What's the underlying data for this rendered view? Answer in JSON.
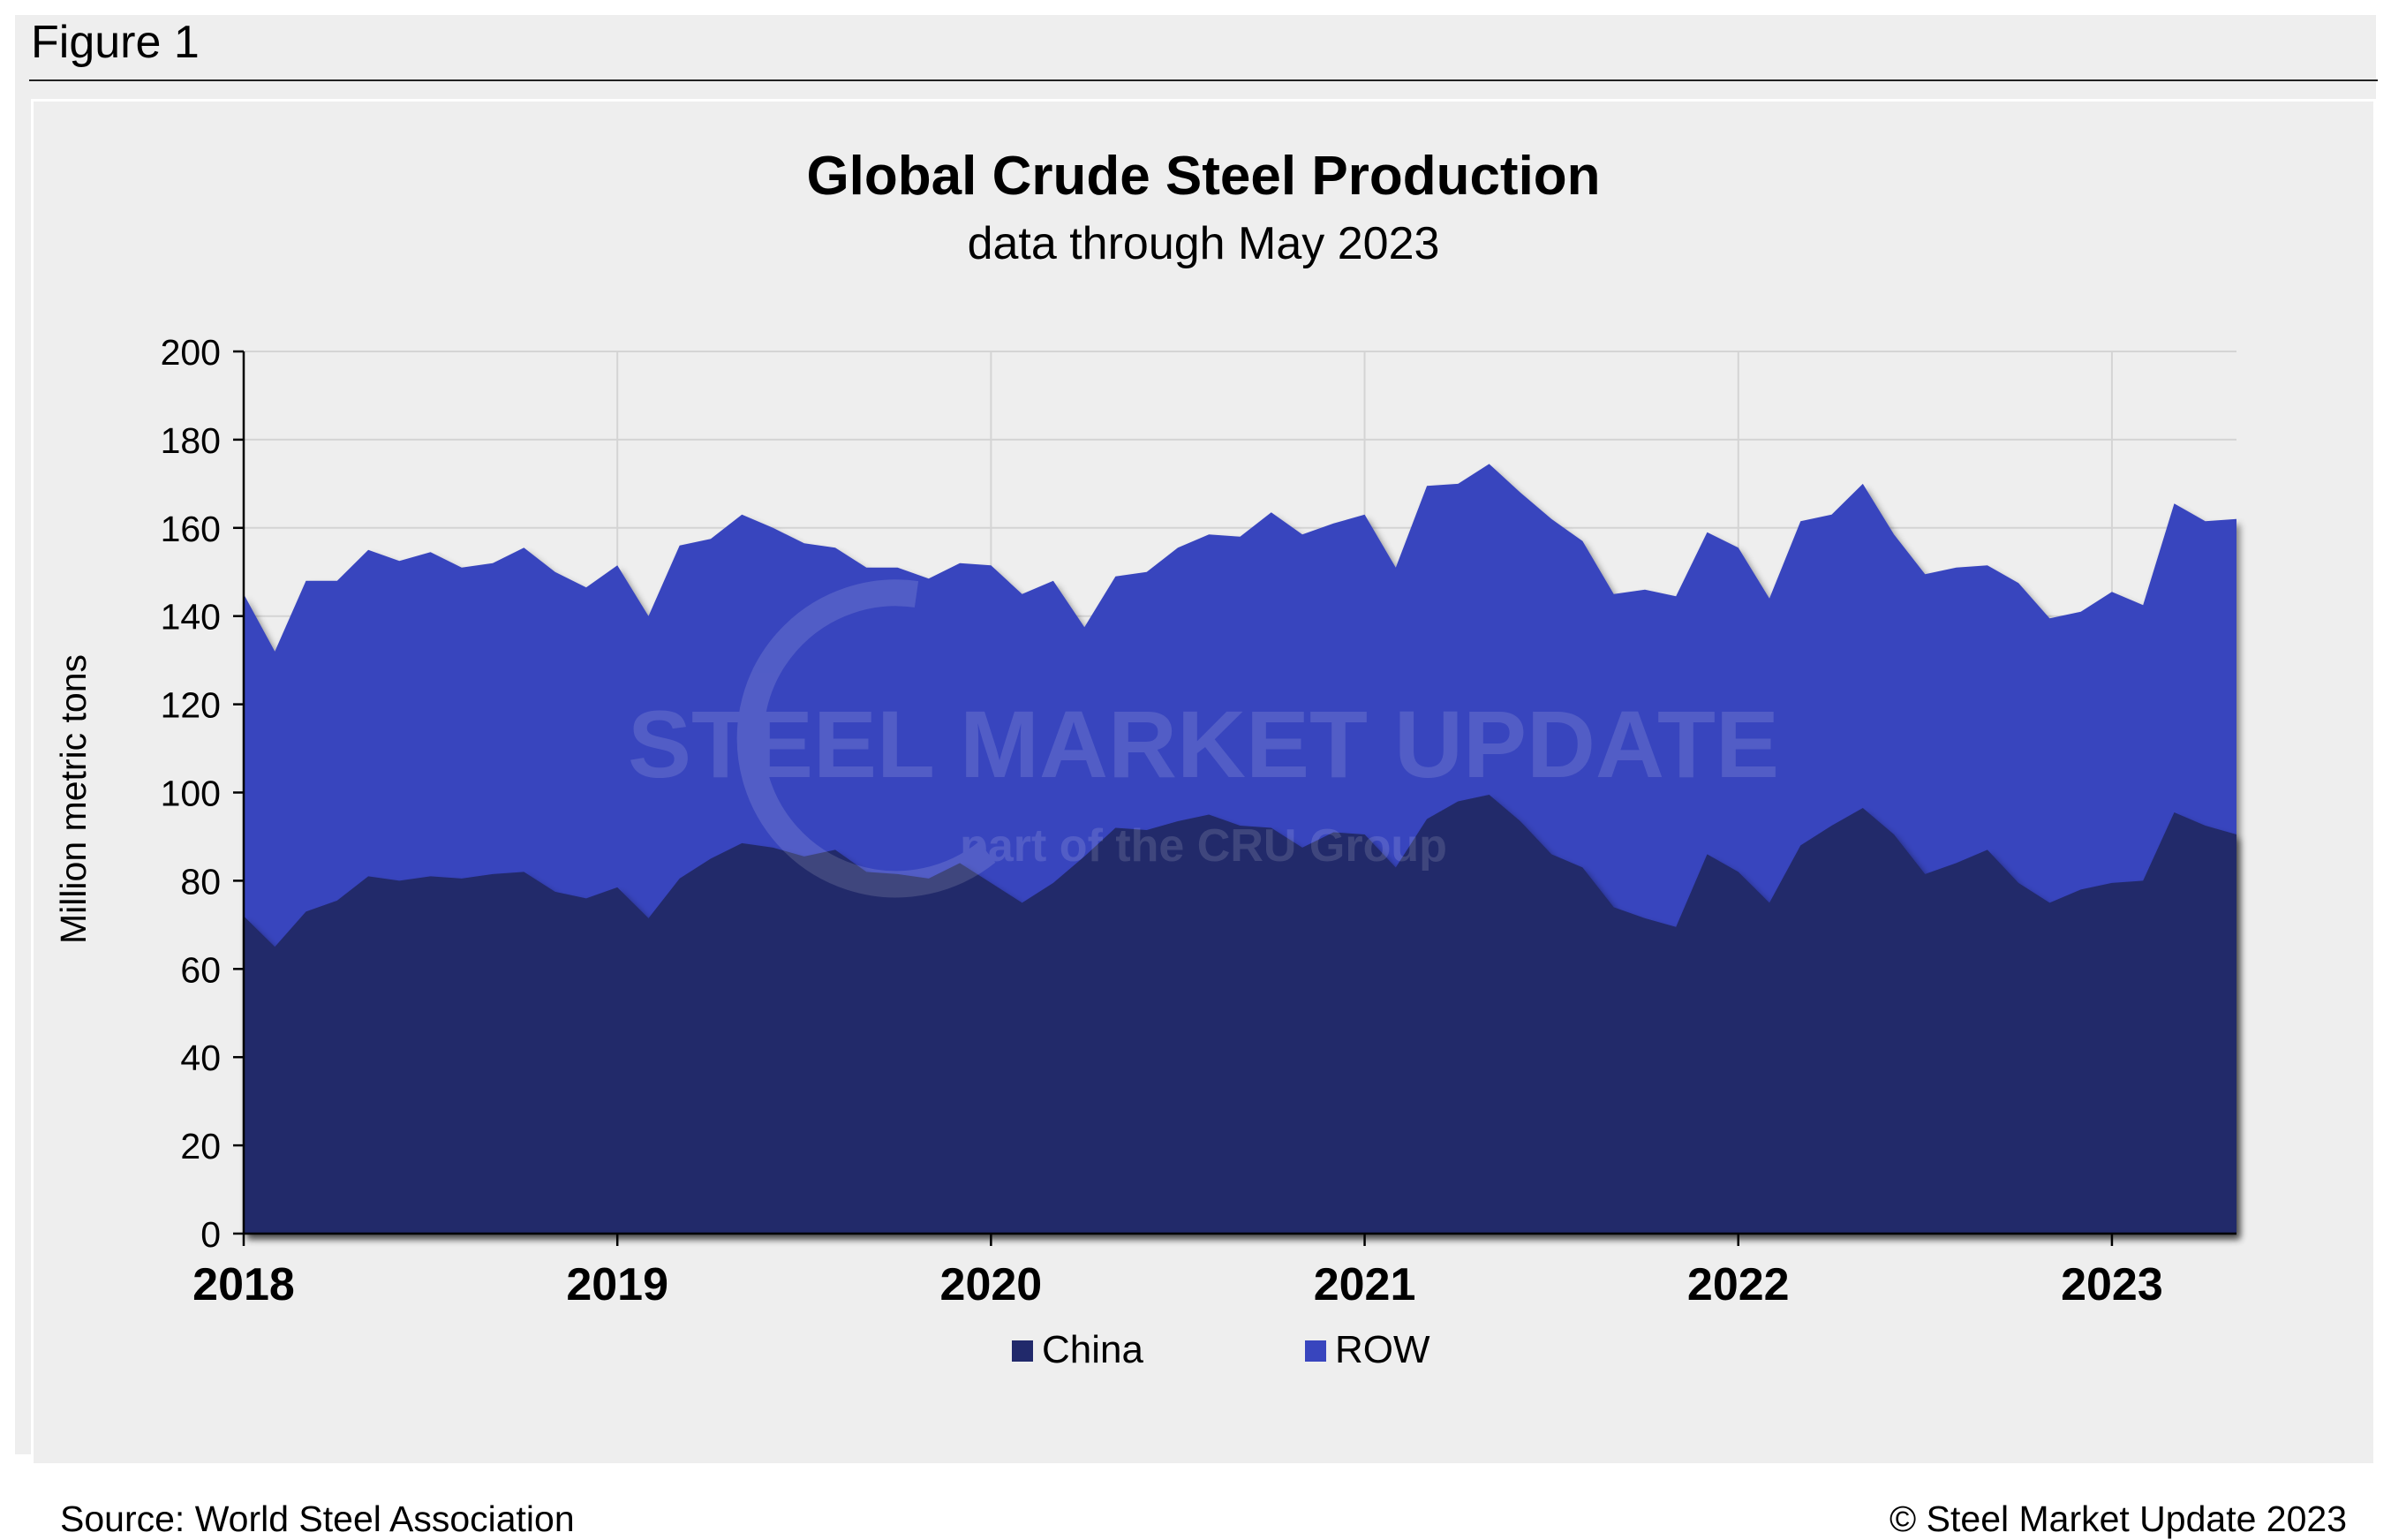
{
  "figure_label": "Figure 1",
  "source_note": "Source: World Steel Association",
  "copyright": "© Steel Market Update 2023",
  "watermark": {
    "brand": "STEEL MARKET UPDATE",
    "tagline": "part of the CRU Group"
  },
  "colors": {
    "china": "#21296b",
    "row": "#3845be",
    "background": "#eeeeee",
    "grid": "#d4d4d4"
  },
  "chart_data": {
    "type": "area",
    "stacked": true,
    "title": "Global Crude Steel Production",
    "subtitle": "data through May 2023",
    "ylabel": "Million metric tons",
    "xlabel": "",
    "ylim": [
      0,
      200
    ],
    "yticks": [
      "0",
      "20",
      "40",
      "60",
      "80",
      "100",
      "120",
      "140",
      "160",
      "180",
      "200"
    ],
    "xticks": [
      "2018",
      "2019",
      "2020",
      "2021",
      "2022",
      "2023"
    ],
    "start": "2018-01",
    "end": "2023-05",
    "legend": "bottom-center",
    "series": [
      {
        "name": "China",
        "values": [
          72,
          65,
          73,
          75.5,
          81,
          80,
          81,
          80.5,
          81.5,
          82,
          77.5,
          76,
          78.5,
          71.5,
          80.5,
          85,
          88.5,
          87.5,
          85.5,
          87,
          82,
          81.5,
          80.5,
          84,
          79.5,
          75,
          79.5,
          85.5,
          92,
          91.5,
          93.5,
          95,
          92.5,
          92,
          87.5,
          91,
          90.5,
          83,
          94,
          98,
          99.5,
          93.5,
          86,
          83,
          74,
          71.5,
          69.5,
          86,
          82,
          75,
          88,
          92.5,
          96.5,
          90.5,
          81.5,
          84,
          87,
          79.5,
          75,
          78,
          79.5,
          80,
          95.5,
          92.5,
          90.5
        ]
      },
      {
        "name": "ROW",
        "values": [
          73,
          67,
          75,
          72.5,
          74,
          72.5,
          73.5,
          70.5,
          70.5,
          73.5,
          72.5,
          70.5,
          73,
          68.5,
          75.5,
          72.5,
          74.5,
          72.5,
          71,
          68.5,
          69,
          69.5,
          68,
          68,
          72,
          70,
          68.5,
          52,
          57,
          58.5,
          62,
          63.5,
          65.5,
          71.5,
          71,
          70,
          72.5,
          68,
          75.5,
          72,
          75,
          74.5,
          76,
          74,
          71,
          74.5,
          75,
          73,
          73.5,
          69,
          73.5,
          70.5,
          73.5,
          68,
          68,
          67,
          64.5,
          68,
          64.5,
          63,
          66,
          62.5,
          70,
          69,
          71.5
        ]
      }
    ]
  }
}
